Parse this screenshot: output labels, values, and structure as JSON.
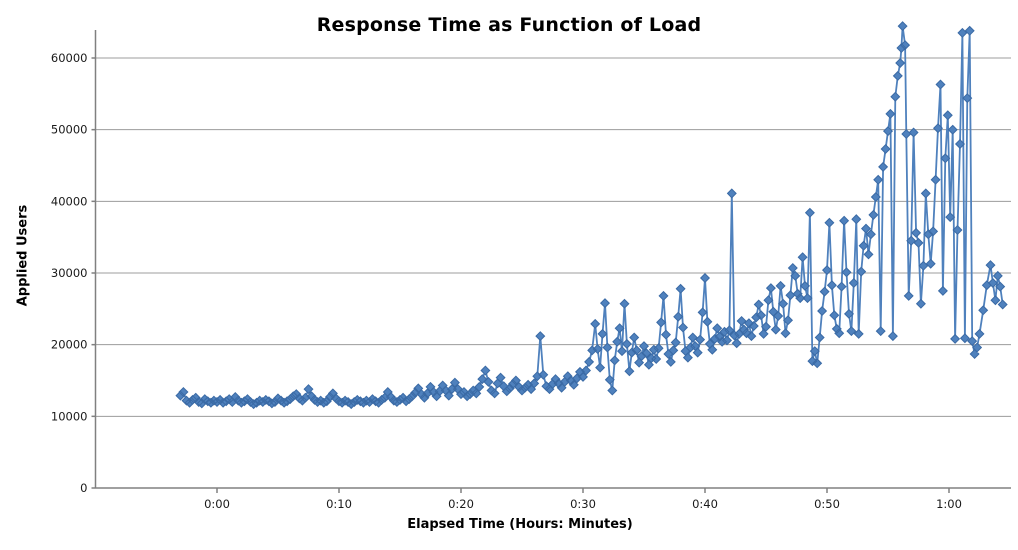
{
  "window": {
    "background": "#ffffff"
  },
  "chart_data": {
    "type": "line",
    "title": "Response Time as Function of Load",
    "xlabel": "Elapsed Time (Hours: Minutes)",
    "ylabel": "Applied Users",
    "legend": "none",
    "grid": "horizontal",
    "x_unit": "minutes",
    "xlim_minutes": [
      -10,
      65.1
    ],
    "ylim": [
      0,
      60000
    ],
    "x_ticks": [
      {
        "t": 0,
        "label": "0:00"
      },
      {
        "t": 10,
        "label": "0:10"
      },
      {
        "t": 20,
        "label": "0:20"
      },
      {
        "t": 30,
        "label": "0:30"
      },
      {
        "t": 40,
        "label": "0:40"
      },
      {
        "t": 50,
        "label": "0:50"
      },
      {
        "t": 60,
        "label": "1:00"
      }
    ],
    "y_ticks": [
      {
        "v": 0,
        "label": "0"
      },
      {
        "v": 10000,
        "label": "10000"
      },
      {
        "v": 20000,
        "label": "20000"
      },
      {
        "v": 30000,
        "label": "30000"
      },
      {
        "v": 40000,
        "label": "40000"
      },
      {
        "v": 50000,
        "label": "50000"
      },
      {
        "v": 60000,
        "label": "60000"
      }
    ],
    "colors": {
      "series": "#4f81bd",
      "marker_edge": "#3a6aa5",
      "gridline": "#9c9c9c",
      "axis": "#808080",
      "text": "#1a1a1a"
    },
    "marker": "diamond",
    "points": [
      [
        -3.0,
        12900
      ],
      [
        -2.75,
        13400
      ],
      [
        -2.5,
        12200
      ],
      [
        -2.25,
        11900
      ],
      [
        -2.0,
        12300
      ],
      [
        -1.75,
        12600
      ],
      [
        -1.5,
        12000
      ],
      [
        -1.25,
        11800
      ],
      [
        -1.0,
        12400
      ],
      [
        -0.75,
        12100
      ],
      [
        -0.5,
        11900
      ],
      [
        -0.25,
        12200
      ],
      [
        0,
        12000
      ],
      [
        0.25,
        12300
      ],
      [
        0.5,
        11900
      ],
      [
        0.75,
        12100
      ],
      [
        1,
        12400
      ],
      [
        1.25,
        12000
      ],
      [
        1.5,
        12700
      ],
      [
        1.75,
        12200
      ],
      [
        2,
        11900
      ],
      [
        2.25,
        12100
      ],
      [
        2.5,
        12400
      ],
      [
        2.75,
        12000
      ],
      [
        3,
        11700
      ],
      [
        3.25,
        11900
      ],
      [
        3.5,
        12200
      ],
      [
        3.75,
        12000
      ],
      [
        4,
        12300
      ],
      [
        4.25,
        12100
      ],
      [
        4.5,
        11800
      ],
      [
        4.75,
        12000
      ],
      [
        5,
        12500
      ],
      [
        5.25,
        12200
      ],
      [
        5.5,
        11900
      ],
      [
        5.75,
        12100
      ],
      [
        6,
        12400
      ],
      [
        6.25,
        12800
      ],
      [
        6.5,
        13100
      ],
      [
        6.75,
        12500
      ],
      [
        7,
        12200
      ],
      [
        7.25,
        12600
      ],
      [
        7.5,
        13800
      ],
      [
        7.75,
        12800
      ],
      [
        8,
        12300
      ],
      [
        8.25,
        12000
      ],
      [
        8.5,
        12200
      ],
      [
        8.75,
        11900
      ],
      [
        9,
        12100
      ],
      [
        9.25,
        12700
      ],
      [
        9.5,
        13200
      ],
      [
        9.75,
        12500
      ],
      [
        10,
        12100
      ],
      [
        10.25,
        11900
      ],
      [
        10.5,
        12200
      ],
      [
        10.75,
        12000
      ],
      [
        11,
        11700
      ],
      [
        11.25,
        12000
      ],
      [
        11.5,
        12300
      ],
      [
        11.75,
        12100
      ],
      [
        12,
        11900
      ],
      [
        12.25,
        12200
      ],
      [
        12.5,
        12000
      ],
      [
        12.75,
        12400
      ],
      [
        13,
        12100
      ],
      [
        13.25,
        11900
      ],
      [
        13.5,
        12300
      ],
      [
        13.75,
        12600
      ],
      [
        14,
        13400
      ],
      [
        14.25,
        12700
      ],
      [
        14.5,
        12200
      ],
      [
        14.75,
        12000
      ],
      [
        15,
        12300
      ],
      [
        15.25,
        12600
      ],
      [
        15.5,
        12100
      ],
      [
        15.75,
        12400
      ],
      [
        16,
        12800
      ],
      [
        16.25,
        13300
      ],
      [
        16.5,
        13900
      ],
      [
        16.75,
        13100
      ],
      [
        17,
        12600
      ],
      [
        17.25,
        13200
      ],
      [
        17.5,
        14100
      ],
      [
        17.75,
        13400
      ],
      [
        18,
        12800
      ],
      [
        18.25,
        13500
      ],
      [
        18.5,
        14300
      ],
      [
        18.75,
        13600
      ],
      [
        19,
        12900
      ],
      [
        19.25,
        13800
      ],
      [
        19.5,
        14700
      ],
      [
        19.75,
        13800
      ],
      [
        20,
        13100
      ],
      [
        20.25,
        13400
      ],
      [
        20.5,
        12800
      ],
      [
        20.75,
        13100
      ],
      [
        21,
        13600
      ],
      [
        21.25,
        13200
      ],
      [
        21.5,
        14100
      ],
      [
        21.75,
        15200
      ],
      [
        22,
        16400
      ],
      [
        22.25,
        14800
      ],
      [
        22.5,
        13600
      ],
      [
        22.75,
        13200
      ],
      [
        23,
        14600
      ],
      [
        23.25,
        15400
      ],
      [
        23.5,
        14200
      ],
      [
        23.75,
        13500
      ],
      [
        24,
        13900
      ],
      [
        24.25,
        14500
      ],
      [
        24.5,
        15000
      ],
      [
        24.75,
        14100
      ],
      [
        25,
        13600
      ],
      [
        25.25,
        14000
      ],
      [
        25.5,
        14400
      ],
      [
        25.75,
        13800
      ],
      [
        26,
        14600
      ],
      [
        26.25,
        15600
      ],
      [
        26.5,
        21200
      ],
      [
        26.75,
        15800
      ],
      [
        27,
        14200
      ],
      [
        27.25,
        13800
      ],
      [
        27.5,
        14500
      ],
      [
        27.75,
        15200
      ],
      [
        28,
        14600
      ],
      [
        28.25,
        14000
      ],
      [
        28.5,
        14800
      ],
      [
        28.75,
        15600
      ],
      [
        29,
        15000
      ],
      [
        29.25,
        14400
      ],
      [
        29.5,
        15300
      ],
      [
        29.75,
        16200
      ],
      [
        30,
        15500
      ],
      [
        30.25,
        16400
      ],
      [
        30.5,
        17600
      ],
      [
        30.75,
        19200
      ],
      [
        31,
        22900
      ],
      [
        31.2,
        19400
      ],
      [
        31.4,
        16800
      ],
      [
        31.6,
        21500
      ],
      [
        31.8,
        25800
      ],
      [
        32,
        19600
      ],
      [
        32.2,
        15100
      ],
      [
        32.4,
        13600
      ],
      [
        32.6,
        17800
      ],
      [
        32.8,
        20400
      ],
      [
        33,
        22300
      ],
      [
        33.2,
        19100
      ],
      [
        33.4,
        25700
      ],
      [
        33.6,
        20100
      ],
      [
        33.8,
        16300
      ],
      [
        34,
        18900
      ],
      [
        34.2,
        21000
      ],
      [
        34.4,
        19200
      ],
      [
        34.6,
        17500
      ],
      [
        34.8,
        18400
      ],
      [
        35,
        19800
      ],
      [
        35.2,
        18800
      ],
      [
        35.4,
        17200
      ],
      [
        35.6,
        18100
      ],
      [
        35.8,
        19300
      ],
      [
        36,
        18000
      ],
      [
        36.2,
        19500
      ],
      [
        36.4,
        23100
      ],
      [
        36.6,
        26800
      ],
      [
        36.8,
        21400
      ],
      [
        37,
        18700
      ],
      [
        37.2,
        17600
      ],
      [
        37.4,
        19200
      ],
      [
        37.6,
        20300
      ],
      [
        37.8,
        23900
      ],
      [
        38,
        27800
      ],
      [
        38.2,
        22400
      ],
      [
        38.4,
        19100
      ],
      [
        38.6,
        18200
      ],
      [
        38.8,
        19600
      ],
      [
        39,
        21000
      ],
      [
        39.2,
        19800
      ],
      [
        39.4,
        18900
      ],
      [
        39.6,
        20700
      ],
      [
        39.8,
        24500
      ],
      [
        40,
        29300
      ],
      [
        40.2,
        23200
      ],
      [
        40.4,
        20100
      ],
      [
        40.6,
        19300
      ],
      [
        40.8,
        20800
      ],
      [
        41,
        22300
      ],
      [
        41.2,
        21100
      ],
      [
        41.4,
        20400
      ],
      [
        41.6,
        21800
      ],
      [
        41.8,
        20600
      ],
      [
        42,
        22000
      ],
      [
        42.2,
        41100
      ],
      [
        42.4,
        21300
      ],
      [
        42.6,
        20200
      ],
      [
        42.8,
        21500
      ],
      [
        43,
        23300
      ],
      [
        43.2,
        22100
      ],
      [
        43.4,
        21600
      ],
      [
        43.6,
        23000
      ],
      [
        43.8,
        21200
      ],
      [
        44,
        22600
      ],
      [
        44.2,
        23800
      ],
      [
        44.4,
        25600
      ],
      [
        44.6,
        24100
      ],
      [
        44.8,
        21500
      ],
      [
        45,
        22500
      ],
      [
        45.2,
        26200
      ],
      [
        45.4,
        27900
      ],
      [
        45.6,
        24600
      ],
      [
        45.8,
        22100
      ],
      [
        46,
        24000
      ],
      [
        46.2,
        28200
      ],
      [
        46.4,
        25700
      ],
      [
        46.6,
        21600
      ],
      [
        46.8,
        23400
      ],
      [
        47,
        26900
      ],
      [
        47.2,
        30700
      ],
      [
        47.4,
        29600
      ],
      [
        47.6,
        27100
      ],
      [
        47.8,
        26500
      ],
      [
        48,
        32200
      ],
      [
        48.2,
        28200
      ],
      [
        48.4,
        26500
      ],
      [
        48.6,
        38400
      ],
      [
        48.8,
        17700
      ],
      [
        49,
        19100
      ],
      [
        49.2,
        17400
      ],
      [
        49.4,
        21000
      ],
      [
        49.6,
        24700
      ],
      [
        49.8,
        27400
      ],
      [
        50,
        30400
      ],
      [
        50.2,
        37000
      ],
      [
        50.4,
        28300
      ],
      [
        50.6,
        24100
      ],
      [
        50.8,
        22200
      ],
      [
        51,
        21600
      ],
      [
        51.2,
        28100
      ],
      [
        51.4,
        37300
      ],
      [
        51.6,
        30100
      ],
      [
        51.8,
        24300
      ],
      [
        52,
        21900
      ],
      [
        52.2,
        28600
      ],
      [
        52.4,
        37500
      ],
      [
        52.6,
        21500
      ],
      [
        52.8,
        30200
      ],
      [
        53,
        33800
      ],
      [
        53.2,
        36200
      ],
      [
        53.4,
        32600
      ],
      [
        53.6,
        35400
      ],
      [
        53.8,
        38100
      ],
      [
        54,
        40600
      ],
      [
        54.2,
        43000
      ],
      [
        54.4,
        21900
      ],
      [
        54.6,
        44800
      ],
      [
        54.8,
        47300
      ],
      [
        55,
        49800
      ],
      [
        55.2,
        52200
      ],
      [
        55.4,
        21200
      ],
      [
        55.6,
        54600
      ],
      [
        55.8,
        57500
      ],
      [
        56,
        59300
      ],
      [
        56.1,
        61400
      ],
      [
        56.2,
        64450
      ],
      [
        56.4,
        61800
      ],
      [
        56.5,
        49400
      ],
      [
        56.7,
        26800
      ],
      [
        56.9,
        34500
      ],
      [
        57.1,
        49600
      ],
      [
        57.3,
        35600
      ],
      [
        57.5,
        34200
      ],
      [
        57.7,
        25700
      ],
      [
        57.9,
        31000
      ],
      [
        58.1,
        41100
      ],
      [
        58.3,
        35400
      ],
      [
        58.5,
        31300
      ],
      [
        58.7,
        35800
      ],
      [
        58.9,
        43000
      ],
      [
        59.1,
        50200
      ],
      [
        59.3,
        56300
      ],
      [
        59.5,
        27500
      ],
      [
        59.7,
        46000
      ],
      [
        59.9,
        52000
      ],
      [
        60.1,
        37800
      ],
      [
        60.3,
        50000
      ],
      [
        60.5,
        20800
      ],
      [
        60.7,
        36000
      ],
      [
        60.9,
        48000
      ],
      [
        61.1,
        63500
      ],
      [
        61.3,
        20900
      ],
      [
        61.5,
        54400
      ],
      [
        61.7,
        63800
      ],
      [
        61.9,
        20500
      ],
      [
        62.1,
        18700
      ],
      [
        62.3,
        19600
      ],
      [
        62.5,
        21500
      ],
      [
        62.8,
        24800
      ],
      [
        63.1,
        28300
      ],
      [
        63.4,
        31100
      ],
      [
        63.6,
        28600
      ],
      [
        63.8,
        26200
      ],
      [
        64.0,
        29600
      ],
      [
        64.2,
        28100
      ],
      [
        64.4,
        25600
      ]
    ]
  }
}
